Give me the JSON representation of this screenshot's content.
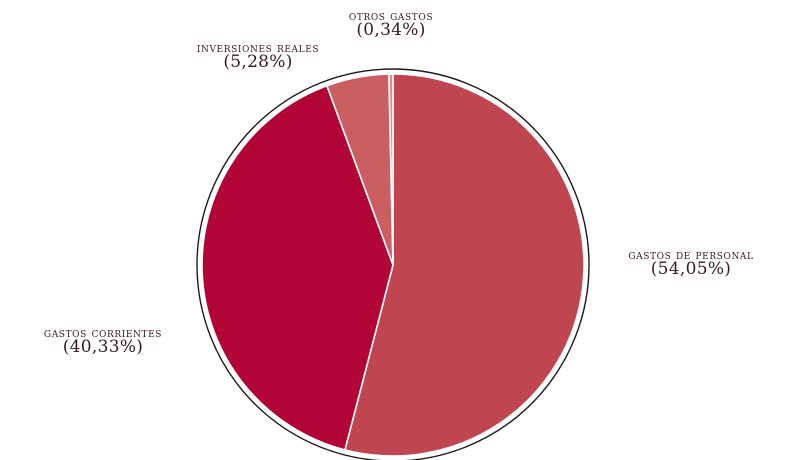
{
  "chart_data": {
    "type": "pie",
    "title": "",
    "categories": [
      "GASTOS DE PERSONAL",
      "GASTOS CORRIENTES",
      "INVERSIONES REALES",
      "OTROS GASTOS"
    ],
    "values": [
      54.05,
      40.33,
      5.28,
      0.34
    ],
    "labels": [
      "(54,05%)",
      "(40,33%)",
      "(5,28%)",
      "(0,34%)"
    ],
    "colors": [
      "#bf4650",
      "#b10535",
      "#cb5e60",
      "#dd8a8c"
    ],
    "start": "top",
    "direction": "clockwise",
    "legend": "none"
  }
}
